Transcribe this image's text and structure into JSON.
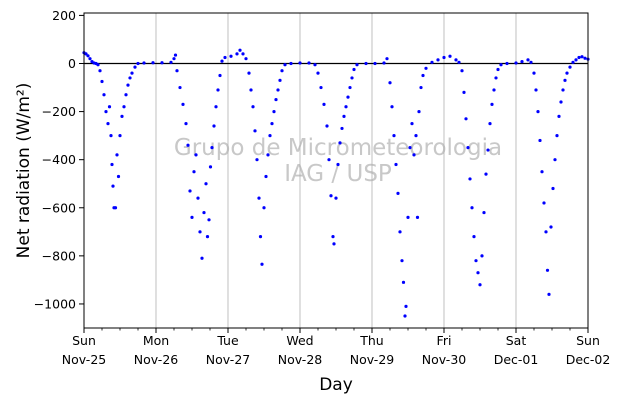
{
  "chart_data": {
    "type": "scatter",
    "title": "",
    "xlabel": "Day",
    "ylabel": "Net radiation (W/m²)",
    "ylim": [
      -1100,
      210
    ],
    "xlim": [
      "2018-11-25T00:00",
      "2018-12-02T00:00"
    ],
    "y_ticks": [
      200,
      0,
      -200,
      -400,
      -600,
      -800,
      -1000
    ],
    "y_tick_labels": [
      "200",
      "0",
      "−200",
      "−400",
      "−600",
      "−800",
      "−1000"
    ],
    "x_ticks": [
      {
        "date": "2018-11-25T00:00",
        "day": "Sun",
        "date_label": "Nov-25"
      },
      {
        "date": "2018-11-26T00:00",
        "day": "Mon",
        "date_label": "Nov-26"
      },
      {
        "date": "2018-11-27T00:00",
        "day": "Tue",
        "date_label": "Nov-27"
      },
      {
        "date": "2018-11-28T00:00",
        "day": "Wed",
        "date_label": "Nov-28"
      },
      {
        "date": "2018-11-29T00:00",
        "day": "Thu",
        "date_label": "Nov-29"
      },
      {
        "date": "2018-11-30T00:00",
        "day": "Fri",
        "date_label": "Nov-30"
      },
      {
        "date": "2018-12-01T00:00",
        "day": "Sat",
        "date_label": "Dec-01"
      },
      {
        "date": "2018-12-02T00:00",
        "day": "Sun",
        "date_label": "Dec-02"
      }
    ],
    "grid": "vertical",
    "reference_line_y": 0,
    "watermark": [
      "Grupo de Micrometeorologia",
      "IAG / USP"
    ],
    "series": [
      {
        "color": "#0000ff",
        "points": [
          [
            "2018-11-25T00:00",
            45
          ],
          [
            "2018-11-25T00:40",
            40
          ],
          [
            "2018-11-25T01:20",
            32
          ],
          [
            "2018-11-25T02:00",
            20
          ],
          [
            "2018-11-25T02:40",
            8
          ],
          [
            "2018-11-25T03:20",
            2
          ],
          [
            "2018-11-25T04:00",
            0
          ],
          [
            "2018-11-25T04:40",
            -5
          ],
          [
            "2018-11-25T05:20",
            -30
          ],
          [
            "2018-11-25T06:00",
            -75
          ],
          [
            "2018-11-25T06:40",
            -130
          ],
          [
            "2018-11-25T07:20",
            -200
          ],
          [
            "2018-11-25T08:00",
            -250
          ],
          [
            "2018-11-25T08:30",
            -180
          ],
          [
            "2018-11-25T09:00",
            -300
          ],
          [
            "2018-11-25T09:20",
            -420
          ],
          [
            "2018-11-25T09:40",
            -510
          ],
          [
            "2018-11-25T10:00",
            -600
          ],
          [
            "2018-11-25T10:30",
            -600
          ],
          [
            "2018-11-25T11:00",
            -380
          ],
          [
            "2018-11-25T11:30",
            -470
          ],
          [
            "2018-11-25T12:00",
            -300
          ],
          [
            "2018-11-25T12:40",
            -220
          ],
          [
            "2018-11-25T13:20",
            -180
          ],
          [
            "2018-11-25T14:00",
            -130
          ],
          [
            "2018-11-25T14:40",
            -90
          ],
          [
            "2018-11-25T15:20",
            -60
          ],
          [
            "2018-11-25T16:00",
            -40
          ],
          [
            "2018-11-25T17:00",
            -15
          ],
          [
            "2018-11-25T18:00",
            0
          ],
          [
            "2018-11-25T20:00",
            2
          ],
          [
            "2018-11-25T23:00",
            3
          ],
          [
            "2018-11-26T02:00",
            3
          ],
          [
            "2018-11-26T05:00",
            5
          ],
          [
            "2018-11-26T06:00",
            20
          ],
          [
            "2018-11-26T06:30",
            35
          ],
          [
            "2018-11-26T07:00",
            -30
          ],
          [
            "2018-11-26T08:00",
            -100
          ],
          [
            "2018-11-26T09:00",
            -170
          ],
          [
            "2018-11-26T10:00",
            -250
          ],
          [
            "2018-11-26T10:40",
            -340
          ],
          [
            "2018-11-26T11:20",
            -530
          ],
          [
            "2018-11-26T12:00",
            -640
          ],
          [
            "2018-11-26T12:40",
            -450
          ],
          [
            "2018-11-26T13:20",
            -380
          ],
          [
            "2018-11-26T14:00",
            -560
          ],
          [
            "2018-11-26T14:40",
            -700
          ],
          [
            "2018-11-26T15:20",
            -810
          ],
          [
            "2018-11-26T16:00",
            -620
          ],
          [
            "2018-11-26T16:40",
            -500
          ],
          [
            "2018-11-26T17:10",
            -720
          ],
          [
            "2018-11-26T17:40",
            -650
          ],
          [
            "2018-11-26T18:10",
            -430
          ],
          [
            "2018-11-26T18:40",
            -350
          ],
          [
            "2018-11-26T19:20",
            -260
          ],
          [
            "2018-11-26T20:00",
            -180
          ],
          [
            "2018-11-26T20:40",
            -110
          ],
          [
            "2018-11-26T21:20",
            -50
          ],
          [
            "2018-11-26T22:00",
            10
          ],
          [
            "2018-11-26T23:00",
            25
          ],
          [
            "2018-11-27T01:00",
            30
          ],
          [
            "2018-11-27T03:00",
            40
          ],
          [
            "2018-11-27T04:00",
            55
          ],
          [
            "2018-11-27T05:00",
            40
          ],
          [
            "2018-11-27T06:00",
            20
          ],
          [
            "2018-11-27T07:00",
            -40
          ],
          [
            "2018-11-27T07:40",
            -110
          ],
          [
            "2018-11-27T08:20",
            -180
          ],
          [
            "2018-11-27T09:00",
            -280
          ],
          [
            "2018-11-27T09:40",
            -400
          ],
          [
            "2018-11-27T10:20",
            -560
          ],
          [
            "2018-11-27T10:50",
            -720
          ],
          [
            "2018-11-27T11:20",
            -835
          ],
          [
            "2018-11-27T12:00",
            -600
          ],
          [
            "2018-11-27T12:40",
            -470
          ],
          [
            "2018-11-27T13:20",
            -380
          ],
          [
            "2018-11-27T14:00",
            -300
          ],
          [
            "2018-11-27T14:40",
            -250
          ],
          [
            "2018-11-27T15:20",
            -200
          ],
          [
            "2018-11-27T16:00",
            -150
          ],
          [
            "2018-11-27T16:40",
            -110
          ],
          [
            "2018-11-27T17:20",
            -70
          ],
          [
            "2018-11-27T18:00",
            -30
          ],
          [
            "2018-11-27T19:00",
            -5
          ],
          [
            "2018-11-27T21:00",
            0
          ],
          [
            "2018-11-28T00:00",
            2
          ],
          [
            "2018-11-28T03:00",
            2
          ],
          [
            "2018-11-28T05:00",
            -5
          ],
          [
            "2018-11-28T06:00",
            -40
          ],
          [
            "2018-11-28T07:00",
            -100
          ],
          [
            "2018-11-28T08:00",
            -170
          ],
          [
            "2018-11-28T09:00",
            -260
          ],
          [
            "2018-11-28T09:40",
            -400
          ],
          [
            "2018-11-28T10:20",
            -550
          ],
          [
            "2018-11-28T11:00",
            -720
          ],
          [
            "2018-11-28T11:20",
            -750
          ],
          [
            "2018-11-28T12:00",
            -560
          ],
          [
            "2018-11-28T12:40",
            -420
          ],
          [
            "2018-11-28T13:20",
            -330
          ],
          [
            "2018-11-28T14:00",
            -270
          ],
          [
            "2018-11-28T14:40",
            -220
          ],
          [
            "2018-11-28T15:20",
            -180
          ],
          [
            "2018-11-28T16:00",
            -140
          ],
          [
            "2018-11-28T16:40",
            -100
          ],
          [
            "2018-11-28T17:20",
            -60
          ],
          [
            "2018-11-28T18:00",
            -25
          ],
          [
            "2018-11-28T19:00",
            -5
          ],
          [
            "2018-11-28T22:00",
            0
          ],
          [
            "2018-11-29T01:00",
            0
          ],
          [
            "2018-11-29T04:00",
            2
          ],
          [
            "2018-11-29T05:00",
            20
          ],
          [
            "2018-11-29T06:00",
            -80
          ],
          [
            "2018-11-29T06:40",
            -180
          ],
          [
            "2018-11-29T07:20",
            -300
          ],
          [
            "2018-11-29T08:00",
            -420
          ],
          [
            "2018-11-29T08:40",
            -540
          ],
          [
            "2018-11-29T09:20",
            -700
          ],
          [
            "2018-11-29T10:00",
            -820
          ],
          [
            "2018-11-29T10:30",
            -910
          ],
          [
            "2018-11-29T11:00",
            -1050
          ],
          [
            "2018-11-29T11:20",
            -1010
          ],
          [
            "2018-11-29T12:00",
            -640
          ],
          [
            "2018-11-29T12:40",
            -350
          ],
          [
            "2018-11-29T13:20",
            -250
          ],
          [
            "2018-11-29T14:00",
            -380
          ],
          [
            "2018-11-29T14:40",
            -300
          ],
          [
            "2018-11-29T15:10",
            -640
          ],
          [
            "2018-11-29T15:40",
            -200
          ],
          [
            "2018-11-29T16:20",
            -100
          ],
          [
            "2018-11-29T17:00",
            -50
          ],
          [
            "2018-11-29T18:00",
            -20
          ],
          [
            "2018-11-29T20:00",
            5
          ],
          [
            "2018-11-29T22:00",
            15
          ],
          [
            "2018-11-30T00:00",
            25
          ],
          [
            "2018-11-30T02:00",
            30
          ],
          [
            "2018-11-30T04:00",
            15
          ],
          [
            "2018-11-30T05:00",
            5
          ],
          [
            "2018-11-30T06:00",
            -30
          ],
          [
            "2018-11-30T06:40",
            -120
          ],
          [
            "2018-11-30T07:20",
            -230
          ],
          [
            "2018-11-30T08:00",
            -350
          ],
          [
            "2018-11-30T08:40",
            -480
          ],
          [
            "2018-11-30T09:20",
            -600
          ],
          [
            "2018-11-30T10:00",
            -720
          ],
          [
            "2018-11-30T10:40",
            -820
          ],
          [
            "2018-11-30T11:20",
            -870
          ],
          [
            "2018-11-30T12:00",
            -920
          ],
          [
            "2018-11-30T12:40",
            -800
          ],
          [
            "2018-11-30T13:20",
            -620
          ],
          [
            "2018-11-30T14:00",
            -460
          ],
          [
            "2018-11-30T14:40",
            -360
          ],
          [
            "2018-11-30T15:20",
            -250
          ],
          [
            "2018-11-30T16:00",
            -170
          ],
          [
            "2018-11-30T16:40",
            -110
          ],
          [
            "2018-11-30T17:20",
            -60
          ],
          [
            "2018-11-30T18:00",
            -25
          ],
          [
            "2018-11-30T19:00",
            -5
          ],
          [
            "2018-11-30T21:00",
            0
          ],
          [
            "2018-12-01T00:00",
            2
          ],
          [
            "2018-12-01T02:00",
            8
          ],
          [
            "2018-12-01T04:00",
            15
          ],
          [
            "2018-12-01T05:00",
            5
          ],
          [
            "2018-12-01T06:00",
            -40
          ],
          [
            "2018-12-01T06:40",
            -110
          ],
          [
            "2018-12-01T07:20",
            -200
          ],
          [
            "2018-12-01T08:00",
            -320
          ],
          [
            "2018-12-01T08:40",
            -450
          ],
          [
            "2018-12-01T09:20",
            -580
          ],
          [
            "2018-12-01T10:00",
            -700
          ],
          [
            "2018-12-01T10:30",
            -860
          ],
          [
            "2018-12-01T11:00",
            -960
          ],
          [
            "2018-12-01T11:40",
            -680
          ],
          [
            "2018-12-01T12:20",
            -520
          ],
          [
            "2018-12-01T13:00",
            -400
          ],
          [
            "2018-12-01T13:40",
            -300
          ],
          [
            "2018-12-01T14:20",
            -220
          ],
          [
            "2018-12-01T15:00",
            -160
          ],
          [
            "2018-12-01T15:40",
            -110
          ],
          [
            "2018-12-01T16:20",
            -70
          ],
          [
            "2018-12-01T17:00",
            -40
          ],
          [
            "2018-12-01T18:00",
            -15
          ],
          [
            "2018-12-01T19:00",
            5
          ],
          [
            "2018-12-01T20:00",
            15
          ],
          [
            "2018-12-01T21:00",
            25
          ],
          [
            "2018-12-01T22:00",
            28
          ],
          [
            "2018-12-01T23:00",
            22
          ],
          [
            "2018-12-02T00:00",
            18
          ]
        ]
      }
    ]
  }
}
